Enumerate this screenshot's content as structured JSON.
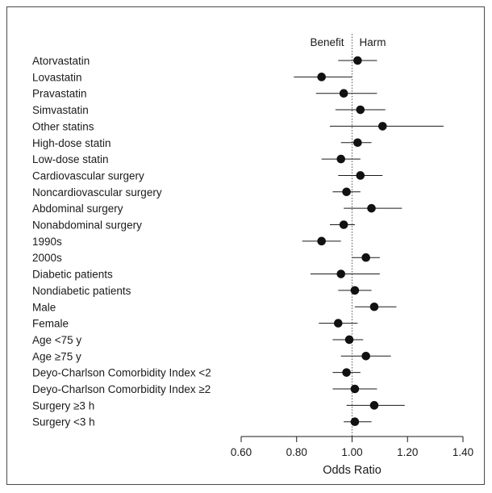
{
  "chart_data": {
    "type": "forest",
    "direction_labels": {
      "left": "Benefit",
      "right": "Harm"
    },
    "xlabel": "Odds Ratio",
    "xlim": [
      0.6,
      1.4
    ],
    "reference_line": 1.0,
    "x_ticks": [
      0.6,
      0.8,
      1.0,
      1.2,
      1.4
    ],
    "x_tick_labels": [
      "0.60",
      "0.80",
      "1.00",
      "1.20",
      "1.40"
    ],
    "rows": [
      {
        "label": "Atorvastatin",
        "or": 1.02,
        "ci": [
          0.95,
          1.09
        ]
      },
      {
        "label": "Lovastatin",
        "or": 0.89,
        "ci": [
          0.79,
          1.0
        ]
      },
      {
        "label": "Pravastatin",
        "or": 0.97,
        "ci": [
          0.87,
          1.09
        ]
      },
      {
        "label": "Simvastatin",
        "or": 1.03,
        "ci": [
          0.94,
          1.12
        ]
      },
      {
        "label": "Other statins",
        "or": 1.11,
        "ci": [
          0.92,
          1.33
        ]
      },
      {
        "label": "High-dose statin",
        "or": 1.02,
        "ci": [
          0.96,
          1.07
        ]
      },
      {
        "label": "Low-dose statin",
        "or": 0.96,
        "ci": [
          0.89,
          1.03
        ]
      },
      {
        "label": "Cardiovascular surgery",
        "or": 1.03,
        "ci": [
          0.95,
          1.11
        ]
      },
      {
        "label": "Noncardiovascular surgery",
        "or": 0.98,
        "ci": [
          0.93,
          1.03
        ]
      },
      {
        "label": "Abdominal surgery",
        "or": 1.07,
        "ci": [
          0.97,
          1.18
        ]
      },
      {
        "label": "Nonabdominal surgery",
        "or": 0.97,
        "ci": [
          0.92,
          1.01
        ]
      },
      {
        "label": "1990s",
        "or": 0.89,
        "ci": [
          0.82,
          0.96
        ]
      },
      {
        "label": "2000s",
        "or": 1.05,
        "ci": [
          1.0,
          1.1
        ]
      },
      {
        "label": "Diabetic patients",
        "or": 0.96,
        "ci": [
          0.85,
          1.1
        ]
      },
      {
        "label": "Nondiabetic patients",
        "or": 1.01,
        "ci": [
          0.95,
          1.07
        ]
      },
      {
        "label": "Male",
        "or": 1.08,
        "ci": [
          1.01,
          1.16
        ]
      },
      {
        "label": "Female",
        "or": 0.95,
        "ci": [
          0.88,
          1.02
        ]
      },
      {
        "label": "Age <75 y",
        "or": 0.99,
        "ci": [
          0.93,
          1.04
        ]
      },
      {
        "label": "Age ≥75 y",
        "or": 1.05,
        "ci": [
          0.96,
          1.14
        ]
      },
      {
        "label": "Deyo-Charlson Comorbidity Index <2",
        "or": 0.98,
        "ci": [
          0.93,
          1.03
        ]
      },
      {
        "label": "Deyo-Charlson Comorbidity Index ≥2",
        "or": 1.01,
        "ci": [
          0.93,
          1.09
        ]
      },
      {
        "label": "Surgery ≥3 h",
        "or": 1.08,
        "ci": [
          0.98,
          1.19
        ]
      },
      {
        "label": "Surgery <3 h",
        "or": 1.01,
        "ci": [
          0.97,
          1.07
        ]
      }
    ]
  }
}
